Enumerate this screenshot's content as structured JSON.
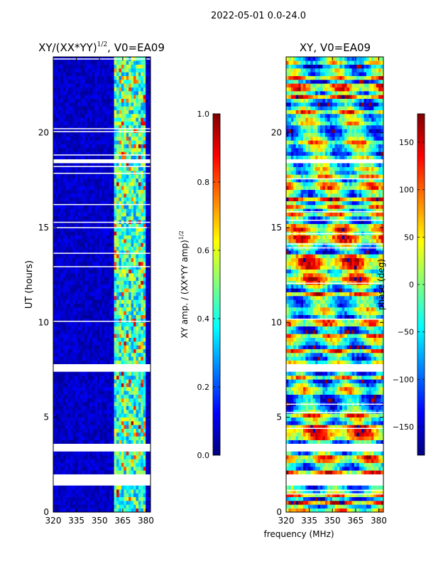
{
  "figure": {
    "suptitle": "2022-05-01 0.0-24.0",
    "xlabel_shared": "frequency (MHz)"
  },
  "chart_data": [
    {
      "type": "heatmap",
      "title_main": "XY/(XX*YY)",
      "title_sup": "1/2",
      "title_tail": ", V0=EA09",
      "ylabel": "UT (hours)",
      "xlim": [
        320,
        383
      ],
      "ylim": [
        0,
        24
      ],
      "x_ticks": [
        320,
        335,
        350,
        365,
        380
      ],
      "y_ticks": [
        0,
        5,
        10,
        15,
        20
      ],
      "colorbar": {
        "label_main": "XY amp. / (XX*YY amp)",
        "label_sup": "1/2",
        "range": [
          0.0,
          1.0
        ],
        "ticks": [
          "0.0",
          "0.2",
          "0.4",
          "0.6",
          "0.8",
          "1.0"
        ],
        "colormap": "jet"
      },
      "flagged_ut_bands_hours": [
        [
          1.5,
          1.9
        ],
        [
          3.2,
          3.6
        ],
        [
          7.5,
          7.8
        ],
        [
          18.4,
          18.6
        ]
      ],
      "bright_frequency_band_mhz": [
        360,
        380
      ]
    },
    {
      "type": "heatmap",
      "title": "XY, V0=EA09",
      "ylabel": "",
      "xlim": [
        320,
        383
      ],
      "ylim": [
        0,
        24
      ],
      "x_ticks": [
        320,
        335,
        350,
        365,
        380
      ],
      "y_ticks": [
        0,
        5,
        10,
        15,
        20
      ],
      "colorbar": {
        "label": "phase (deg)",
        "range": [
          -180,
          180
        ],
        "ticks": [
          "-150",
          "-100",
          "-50",
          "0",
          "50",
          "100",
          "150"
        ],
        "colormap": "jet"
      },
      "flagged_ut_bands_hours": [
        [
          1.5,
          1.9
        ],
        [
          3.2,
          3.6
        ],
        [
          7.5,
          7.8
        ],
        [
          18.4,
          18.6
        ]
      ]
    }
  ],
  "colors": {
    "jet_low": "#00007f",
    "jet_high": "#7f0000",
    "flag": "#ffffff"
  }
}
